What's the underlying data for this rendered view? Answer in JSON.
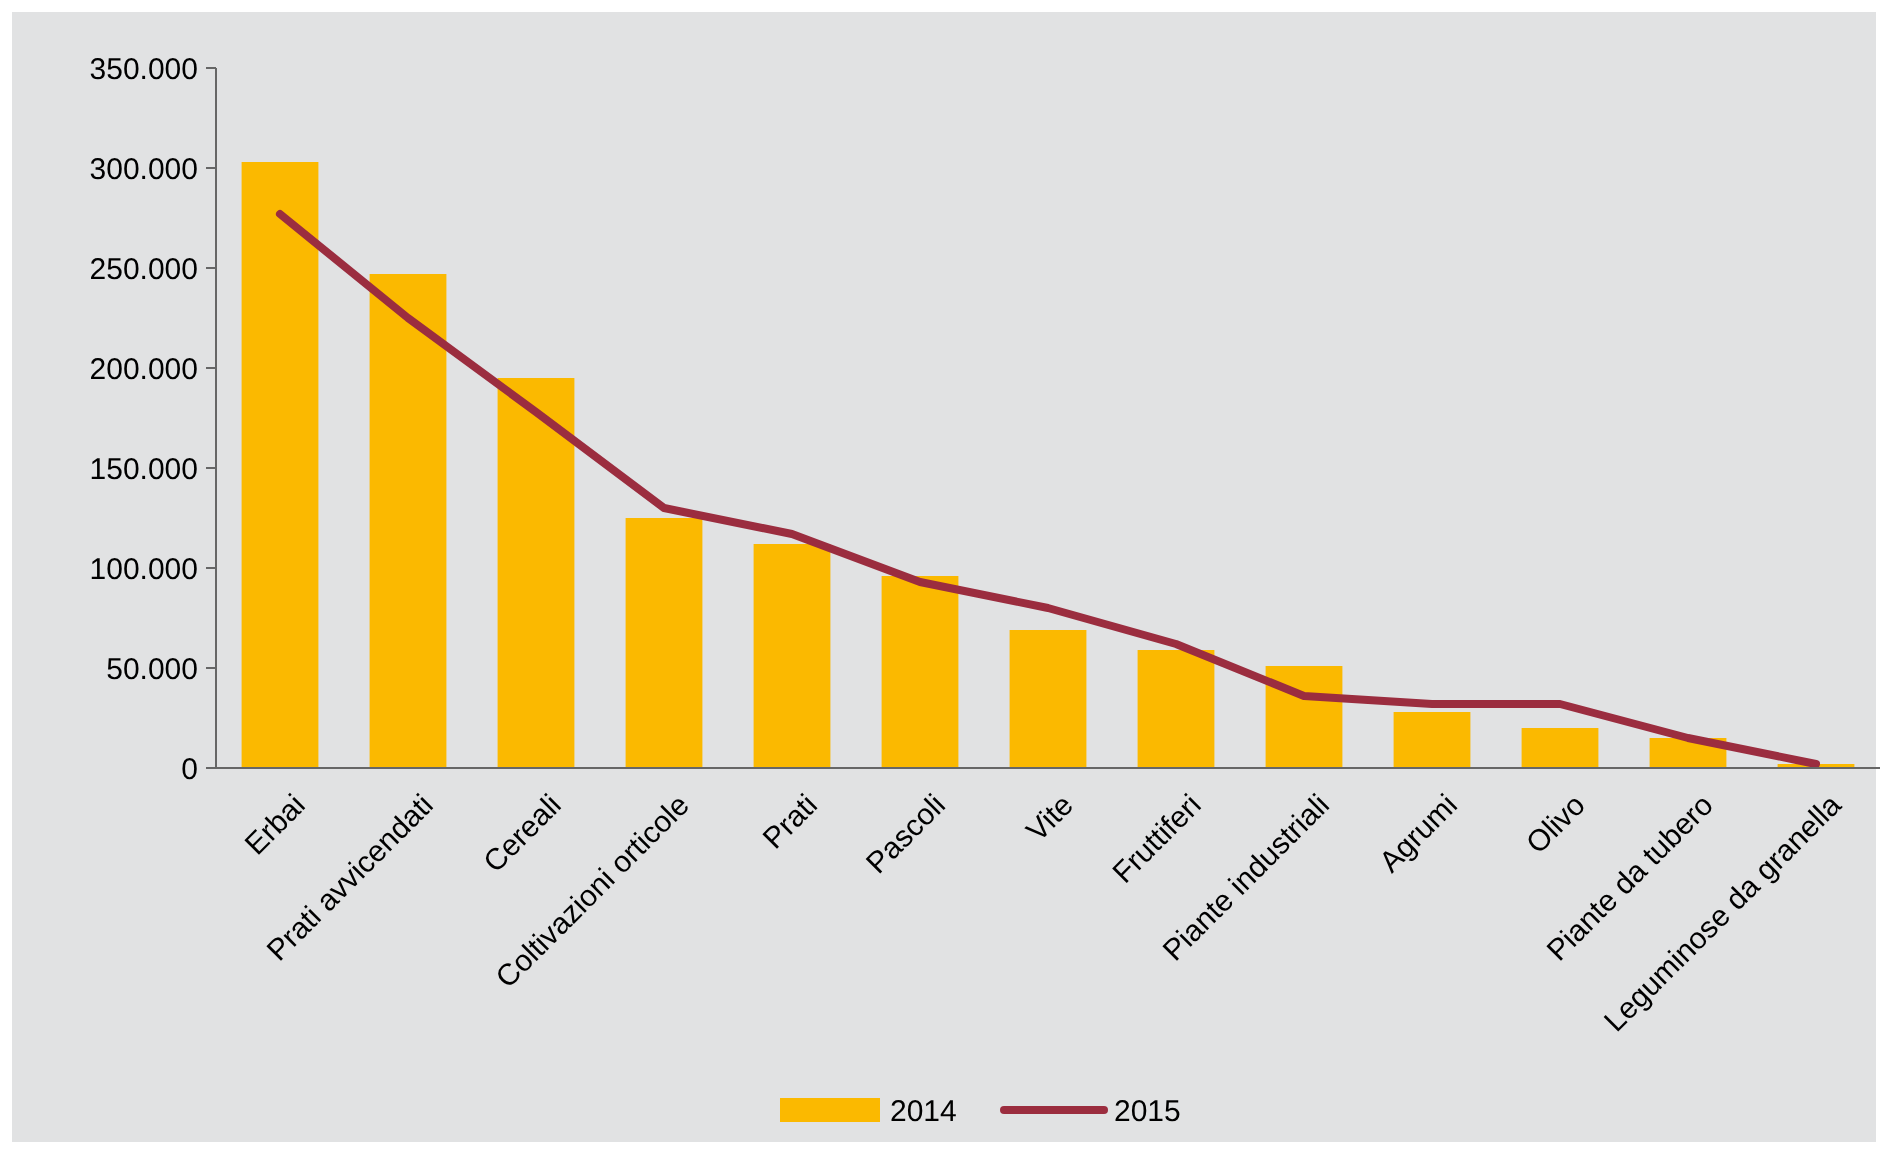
{
  "chart_data": {
    "type": "bar",
    "categories": [
      "Erbai",
      "Prati avvicendati",
      "Cereali",
      "Coltivazioni orticole",
      "Prati",
      "Pascoli",
      "Vite",
      "Fruttiferi",
      "Piante industriali",
      "Agrumi",
      "Olivo",
      "Piante da tubero",
      "Leguminose da granella"
    ],
    "series": [
      {
        "name": "2014",
        "color": "#fbb900",
        "values": [
          303000,
          247000,
          195000,
          125000,
          112000,
          96000,
          69000,
          59000,
          51000,
          28000,
          20000,
          15000,
          2000
        ]
      },
      {
        "name": "2015",
        "type": "line",
        "color": "#9b2d3f",
        "values": [
          277000,
          225000,
          178000,
          130000,
          117000,
          93000,
          80000,
          62000,
          36000,
          32000,
          32000,
          15000,
          2000
        ]
      }
    ],
    "ylim": [
      0,
      350000
    ],
    "yticks": [
      {
        "value": 0,
        "label": "0"
      },
      {
        "value": 50000,
        "label": "50.000"
      },
      {
        "value": 100000,
        "label": "100.000"
      },
      {
        "value": 150000,
        "label": "150.000"
      },
      {
        "value": 200000,
        "label": "200.000"
      },
      {
        "value": 250000,
        "label": "250.000"
      },
      {
        "value": 300000,
        "label": "300.000"
      },
      {
        "value": 350000,
        "label": "350.000"
      }
    ],
    "legend": "bottom",
    "marker": "none",
    "line_style": "solid"
  }
}
